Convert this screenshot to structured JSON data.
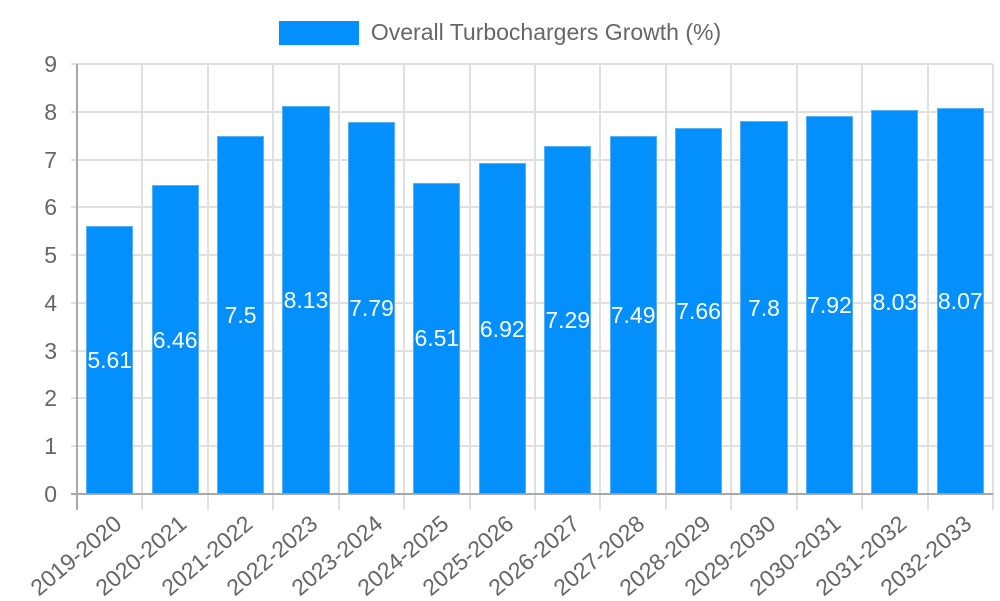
{
  "legend": {
    "label": "Overall Turbochargers Growth (%)",
    "color": "#038ffc"
  },
  "chart_data": {
    "type": "bar",
    "title": "",
    "xlabel": "",
    "ylabel": "",
    "ylim": [
      0,
      9
    ],
    "yticks": [
      "0",
      "1",
      "2",
      "3",
      "4",
      "5",
      "6",
      "7",
      "8",
      "9"
    ],
    "grid": true,
    "legend_position": "top",
    "categories": [
      "2019-2020",
      "2020-2021",
      "2021-2022",
      "2022-2023",
      "2023-2024",
      "2024-2025",
      "2025-2026",
      "2026-2027",
      "2027-2028",
      "2028-2029",
      "2029-2030",
      "2030-2031",
      "2031-2032",
      "2032-2033"
    ],
    "series": [
      {
        "name": "Overall Turbochargers Growth (%)",
        "color": "#038ffc",
        "values": [
          5.61,
          6.46,
          7.5,
          8.13,
          7.79,
          6.51,
          6.92,
          7.29,
          7.49,
          7.66,
          7.8,
          7.92,
          8.03,
          8.07
        ],
        "labels": [
          "5.61",
          "6.46",
          "7.5",
          "8.13",
          "7.79",
          "6.51",
          "6.92",
          "7.29",
          "7.49",
          "7.66",
          "7.8",
          "7.92",
          "8.03",
          "8.07"
        ]
      }
    ]
  }
}
